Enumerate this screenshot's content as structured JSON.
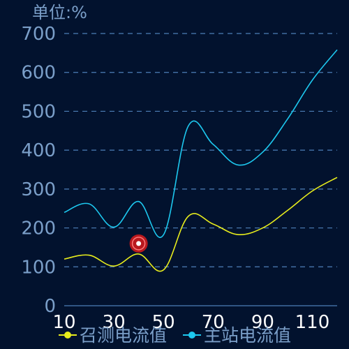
{
  "chart_data": {
    "type": "line",
    "ylabel": "单位:%",
    "x": [
      10,
      20,
      30,
      40,
      50,
      60,
      70,
      80,
      90,
      100,
      110,
      120
    ],
    "xtick_labels": [
      "10",
      "30",
      "50",
      "70",
      "90",
      "110"
    ],
    "ytick_labels": [
      "0",
      "100",
      "200",
      "300",
      "400",
      "500",
      "600",
      "700"
    ],
    "xlim": [
      10,
      120
    ],
    "ylim": [
      0,
      700
    ],
    "grid": true,
    "legend_position": "bottom",
    "series": [
      {
        "name": "召测电流值",
        "color": "#e8ed1c",
        "values": [
          120,
          130,
          102,
          133,
          92,
          230,
          210,
          183,
          200,
          245,
          295,
          330
        ]
      },
      {
        "name": "主站电流值",
        "color": "#1dc8ef",
        "values": [
          240,
          262,
          202,
          268,
          182,
          462,
          415,
          362,
          395,
          480,
          580,
          658
        ]
      }
    ],
    "annotations": [
      {
        "type": "marker",
        "x": 40,
        "y": 160,
        "color": "#d91a1a"
      }
    ]
  }
}
